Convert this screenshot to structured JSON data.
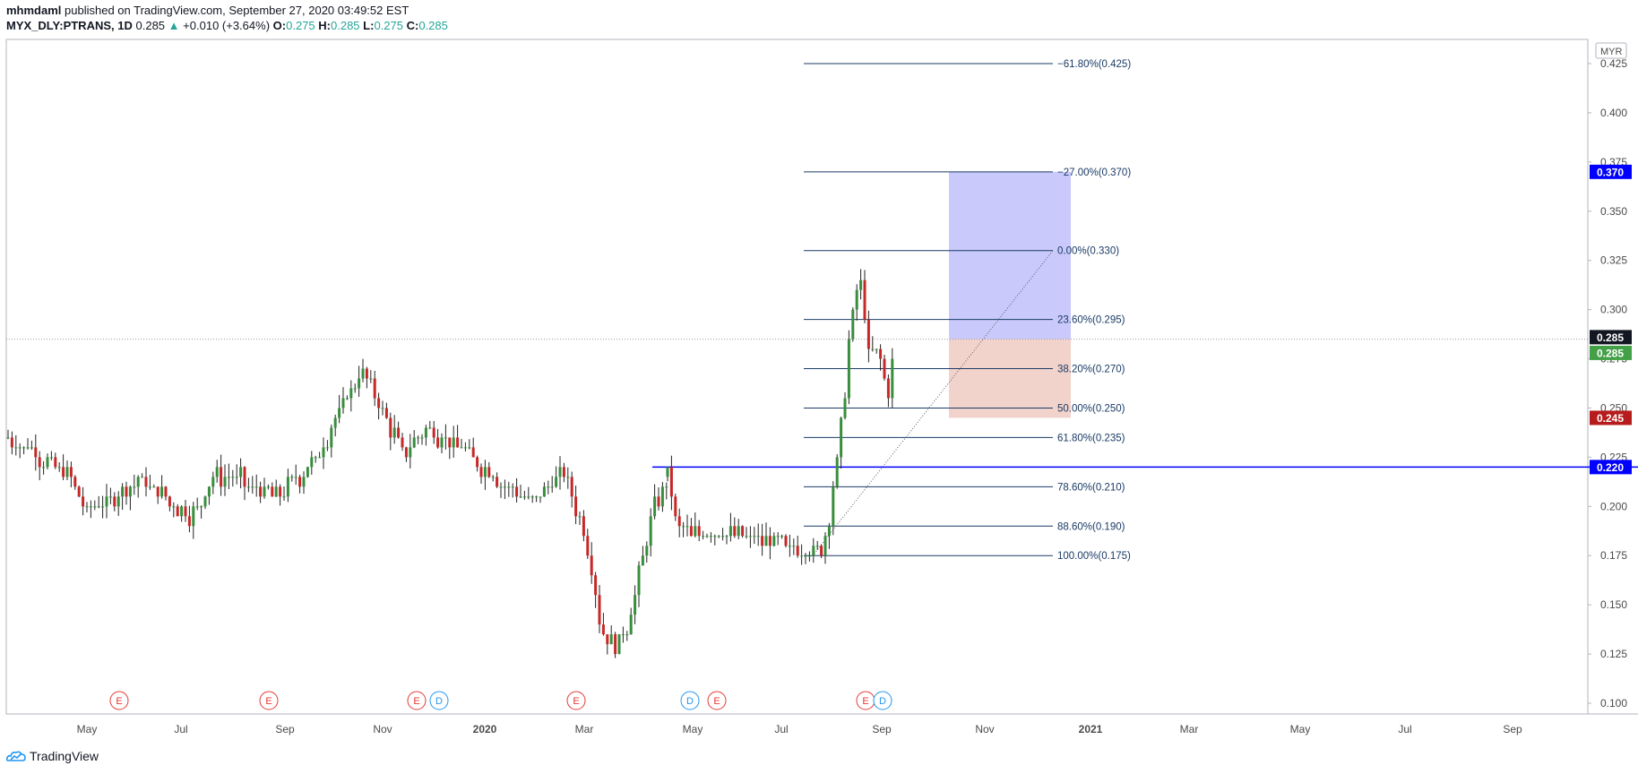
{
  "header": {
    "author": "mhmdaml",
    "published_text": "published on TradingView.com, September 27, 2020 03:49:52 EST",
    "symbol": "MYX_DLY:PTRANS, 1D",
    "last": "0.285",
    "change": "+0.010 (+3.64%)",
    "o_label": "O:",
    "o_value": "0.275",
    "h_label": "H:",
    "h_value": "0.285",
    "l_label": "L:",
    "l_value": "0.275",
    "c_label": "C:",
    "c_value": "0.285"
  },
  "footer": {
    "brand": "TradingView"
  },
  "chart_data": {
    "type": "candlestick",
    "currency": "MYR",
    "ylim": [
      0.09,
      0.435
    ],
    "y_ticks": [
      0.1,
      0.125,
      0.15,
      0.175,
      0.2,
      0.225,
      0.25,
      0.275,
      0.3,
      0.325,
      0.35,
      0.375,
      0.4,
      0.425
    ],
    "x_ticks": [
      "May",
      "Jul",
      "Sep",
      "Nov",
      "2020",
      "Mar",
      "May",
      "Jul",
      "Sep",
      "Nov",
      "2021",
      "Mar",
      "May",
      "Jul",
      "Sep"
    ],
    "price_path": [
      [
        0,
        0.235
      ],
      [
        0.03,
        0.23
      ],
      [
        0.06,
        0.222
      ],
      [
        0.09,
        0.215
      ],
      [
        0.12,
        0.198
      ],
      [
        0.16,
        0.205
      ],
      [
        0.2,
        0.215
      ],
      [
        0.25,
        0.2
      ],
      [
        0.28,
        0.195
      ],
      [
        0.31,
        0.215
      ],
      [
        0.35,
        0.215
      ],
      [
        0.38,
        0.208
      ],
      [
        0.41,
        0.205
      ],
      [
        0.44,
        0.215
      ],
      [
        0.47,
        0.225
      ],
      [
        0.51,
        0.255
      ],
      [
        0.54,
        0.27
      ],
      [
        0.57,
        0.245
      ],
      [
        0.6,
        0.228
      ],
      [
        0.63,
        0.238
      ],
      [
        0.67,
        0.235
      ],
      [
        0.7,
        0.225
      ],
      [
        0.74,
        0.215
      ],
      [
        0.78,
        0.205
      ],
      [
        0.81,
        0.205
      ],
      [
        0.84,
        0.218
      ],
      [
        0.86,
        0.2
      ],
      [
        0.88,
        0.178
      ],
      [
        0.9,
        0.135
      ],
      [
        0.92,
        0.13
      ],
      [
        0.94,
        0.14
      ],
      [
        0.96,
        0.17
      ],
      [
        0.98,
        0.2
      ],
      [
        1.0,
        0.215
      ]
    ],
    "price_path2": [
      [
        0,
        0.215
      ],
      [
        0.04,
        0.19
      ],
      [
        0.1,
        0.185
      ],
      [
        0.2,
        0.188
      ],
      [
        0.35,
        0.185
      ],
      [
        0.5,
        0.18
      ],
      [
        0.62,
        0.178
      ],
      [
        0.68,
        0.176
      ],
      [
        0.72,
        0.205
      ],
      [
        0.76,
        0.24
      ],
      [
        0.8,
        0.29
      ],
      [
        0.84,
        0.32
      ],
      [
        0.86,
        0.3
      ],
      [
        0.88,
        0.275
      ],
      [
        0.91,
        0.278
      ],
      [
        0.94,
        0.27
      ],
      [
        0.96,
        0.255
      ],
      [
        0.98,
        0.272
      ],
      [
        1.0,
        0.285
      ]
    ],
    "fibonacci": [
      {
        "label": "−61.80%(0.425)",
        "price": 0.425
      },
      {
        "label": "−27.00%(0.370)",
        "price": 0.37
      },
      {
        "label": "0.00%(0.330)",
        "price": 0.33
      },
      {
        "label": "23.60%(0.295)",
        "price": 0.295
      },
      {
        "label": "38.20%(0.270)",
        "price": 0.27
      },
      {
        "label": "50.00%(0.250)",
        "price": 0.25
      },
      {
        "label": "61.80%(0.235)",
        "price": 0.235
      },
      {
        "label": "78.60%(0.210)",
        "price": 0.21
      },
      {
        "label": "88.60%(0.190)",
        "price": 0.19
      },
      {
        "label": "100.00%(0.175)",
        "price": 0.175
      }
    ],
    "horizontal_line": {
      "price": 0.22,
      "label": "0.220",
      "color": "#0000ff"
    },
    "current_price_line": 0.285,
    "position": {
      "entry": 0.285,
      "target": 0.37,
      "stop": 0.245,
      "target_color": "#c9c9fb",
      "stop_color": "#f2d3cb"
    },
    "price_tags": [
      {
        "label": "0.370",
        "price": 0.37,
        "color": "#0000ff"
      },
      {
        "label": "0.285",
        "price": 0.286,
        "color": "#131722"
      },
      {
        "label": "0.285",
        "price": 0.278,
        "color": "#43a047"
      },
      {
        "label": "0.245",
        "price": 0.245,
        "color": "#b71c1c"
      },
      {
        "label": "0.220",
        "price": 0.22,
        "color": "#0000ff"
      }
    ],
    "events": [
      {
        "type": "E"
      },
      {
        "type": "E"
      },
      {
        "type": "E"
      },
      {
        "type": "D"
      },
      {
        "type": "E"
      },
      {
        "type": "D"
      },
      {
        "type": "E"
      },
      {
        "type": "E"
      },
      {
        "type": "D"
      }
    ],
    "colors": {
      "up": "#388e3c",
      "down": "#c62828",
      "fib": "#1a3b66",
      "grid_text": "#787b86"
    }
  }
}
